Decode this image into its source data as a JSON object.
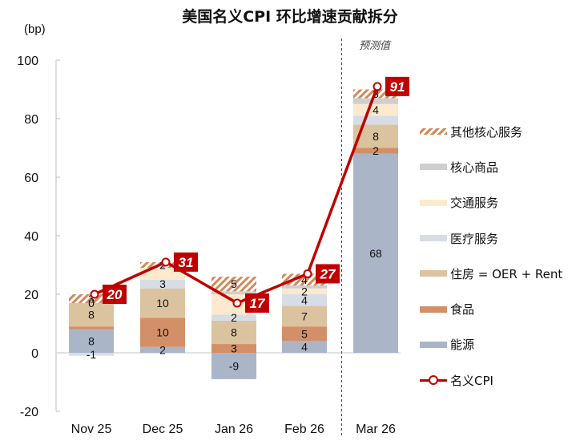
{
  "title": "美国名义CPI 环比增速贡献拆分",
  "unit_label": "(bp)",
  "forecast_label": "预测值",
  "colors": {
    "other_core_services": "#d08a5a",
    "core_goods": "#cfcfcf",
    "transport_services": "#fde9cd",
    "medical_services": "#d6dde6",
    "shelter": "#dcc3a0",
    "food": "#d39068",
    "energy": "#aab5c8",
    "headline_cpi": "#c00000"
  },
  "legend": [
    {
      "key": "other_core_services",
      "label": "其他核心服务",
      "type": "hatch"
    },
    {
      "key": "core_goods",
      "label": "核心商品",
      "type": "box"
    },
    {
      "key": "transport_services",
      "label": "交通服务",
      "type": "box"
    },
    {
      "key": "medical_services",
      "label": "医疗服务",
      "type": "box"
    },
    {
      "key": "shelter",
      "label": "住房 = OER + Rent",
      "type": "box"
    },
    {
      "key": "food",
      "label": "食品",
      "type": "box"
    },
    {
      "key": "energy",
      "label": "能源",
      "type": "box"
    },
    {
      "key": "headline_cpi",
      "label": "名义CPI",
      "type": "line"
    }
  ],
  "chart_data": {
    "type": "bar",
    "stacked": true,
    "title": "美国名义CPI 环比增速贡献拆分",
    "xlabel": "",
    "ylabel": "(bp)",
    "ylim": [
      -20,
      100
    ],
    "yticks": [
      -20,
      0,
      20,
      40,
      60,
      80,
      100
    ],
    "grid": false,
    "legend_position": "right",
    "categories": [
      "Nov 25",
      "Dec 25",
      "Jan 26",
      "Feb 26",
      "Mar 26"
    ],
    "forecast_from_index": 4,
    "series": [
      {
        "key": "energy",
        "name": "能源",
        "values": [
          8,
          2,
          -9,
          4,
          68
        ],
        "labels": [
          "8",
          "2",
          "-9",
          "4",
          "68"
        ]
      },
      {
        "key": "food",
        "name": "食品",
        "values": [
          1,
          10,
          3,
          5,
          2
        ],
        "labels": [
          "",
          "10",
          "3",
          "5",
          "2"
        ]
      },
      {
        "key": "shelter",
        "name": "住房 = OER + Rent",
        "values": [
          8,
          10,
          8,
          7,
          8
        ],
        "labels": [
          "8",
          "10",
          "8",
          "7",
          "8"
        ]
      },
      {
        "key": "medical_services",
        "name": "医疗服务",
        "values": [
          -1,
          3,
          2,
          4,
          3
        ],
        "labels": [
          "-1",
          "3",
          "2",
          "4",
          ""
        ]
      },
      {
        "key": "transport_services",
        "name": "交通服务",
        "values": [
          0,
          4,
          7,
          2,
          4
        ],
        "labels": [
          "0",
          "",
          "",
          "2",
          "4"
        ]
      },
      {
        "key": "core_goods",
        "name": "核心商品",
        "values": [
          0,
          0,
          1,
          1,
          2
        ],
        "labels": [
          "",
          "",
          "",
          "",
          ""
        ]
      },
      {
        "key": "other_core_services",
        "name": "其他核心服务",
        "values": [
          3,
          2,
          5,
          4,
          3
        ],
        "labels": [
          "3",
          "2",
          "5",
          "4",
          "3"
        ]
      }
    ],
    "line": {
      "key": "headline_cpi",
      "name": "名义CPI",
      "values": [
        20,
        31,
        17,
        27,
        91
      ],
      "labels": [
        "20",
        "31",
        "17",
        "27",
        "91"
      ]
    }
  }
}
